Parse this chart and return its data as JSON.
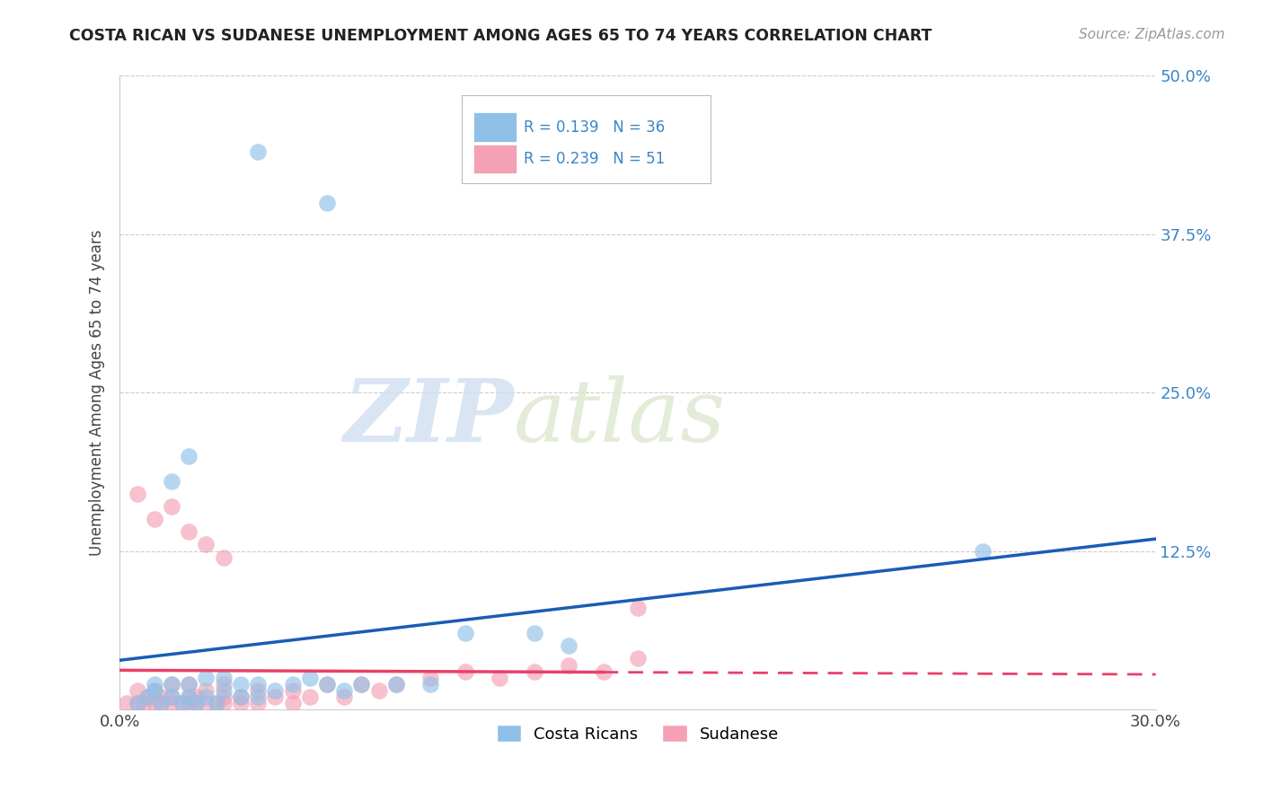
{
  "title": "COSTA RICAN VS SUDANESE UNEMPLOYMENT AMONG AGES 65 TO 74 YEARS CORRELATION CHART",
  "source": "Source: ZipAtlas.com",
  "ylabel": "Unemployment Among Ages 65 to 74 years",
  "xlim": [
    0.0,
    0.3
  ],
  "ylim": [
    0.0,
    0.5
  ],
  "xticks": [
    0.0,
    0.05,
    0.1,
    0.15,
    0.2,
    0.25,
    0.3
  ],
  "xticklabels": [
    "0.0%",
    "",
    "",
    "",
    "",
    "",
    "30.0%"
  ],
  "yticks": [
    0.0,
    0.125,
    0.25,
    0.375,
    0.5
  ],
  "yticklabels": [
    "",
    "12.5%",
    "25.0%",
    "37.5%",
    "50.0%"
  ],
  "legend_blue_r": "R = 0.139",
  "legend_blue_n": "N = 36",
  "legend_pink_r": "R = 0.239",
  "legend_pink_n": "N = 51",
  "blue_scatter_color": "#90c0e8",
  "pink_scatter_color": "#f4a0b5",
  "blue_line_color": "#1a5cb5",
  "pink_line_color": "#e8406a",
  "watermark_zip": "ZIP",
  "watermark_atlas": "atlas",
  "background_color": "#ffffff",
  "grid_color": "#cccccc",
  "costa_rican_x": [
    0.005,
    0.008,
    0.01,
    0.01,
    0.012,
    0.015,
    0.015,
    0.018,
    0.02,
    0.02,
    0.022,
    0.025,
    0.025,
    0.028,
    0.03,
    0.03,
    0.035,
    0.035,
    0.04,
    0.04,
    0.045,
    0.05,
    0.055,
    0.06,
    0.065,
    0.07,
    0.08,
    0.09,
    0.1,
    0.12,
    0.13,
    0.015,
    0.02,
    0.25,
    0.06,
    0.04
  ],
  "costa_rican_y": [
    0.005,
    0.01,
    0.015,
    0.02,
    0.005,
    0.01,
    0.02,
    0.005,
    0.01,
    0.02,
    0.005,
    0.01,
    0.025,
    0.005,
    0.015,
    0.025,
    0.01,
    0.02,
    0.01,
    0.02,
    0.015,
    0.02,
    0.025,
    0.02,
    0.015,
    0.02,
    0.02,
    0.02,
    0.06,
    0.06,
    0.05,
    0.18,
    0.2,
    0.125,
    0.4,
    0.44
  ],
  "sudanese_x": [
    0.002,
    0.005,
    0.005,
    0.007,
    0.008,
    0.01,
    0.01,
    0.012,
    0.012,
    0.015,
    0.015,
    0.015,
    0.018,
    0.02,
    0.02,
    0.02,
    0.022,
    0.022,
    0.025,
    0.025,
    0.028,
    0.03,
    0.03,
    0.03,
    0.035,
    0.035,
    0.04,
    0.04,
    0.045,
    0.05,
    0.05,
    0.055,
    0.06,
    0.065,
    0.07,
    0.075,
    0.08,
    0.09,
    0.1,
    0.11,
    0.12,
    0.13,
    0.14,
    0.15,
    0.005,
    0.01,
    0.015,
    0.02,
    0.025,
    0.03,
    0.15
  ],
  "sudanese_y": [
    0.005,
    0.005,
    0.015,
    0.005,
    0.01,
    0.005,
    0.015,
    0.005,
    0.01,
    0.005,
    0.01,
    0.02,
    0.005,
    0.005,
    0.01,
    0.02,
    0.005,
    0.01,
    0.005,
    0.015,
    0.005,
    0.005,
    0.01,
    0.02,
    0.005,
    0.01,
    0.005,
    0.015,
    0.01,
    0.005,
    0.015,
    0.01,
    0.02,
    0.01,
    0.02,
    0.015,
    0.02,
    0.025,
    0.03,
    0.025,
    0.03,
    0.035,
    0.03,
    0.04,
    0.17,
    0.15,
    0.16,
    0.14,
    0.13,
    0.12,
    0.08
  ]
}
